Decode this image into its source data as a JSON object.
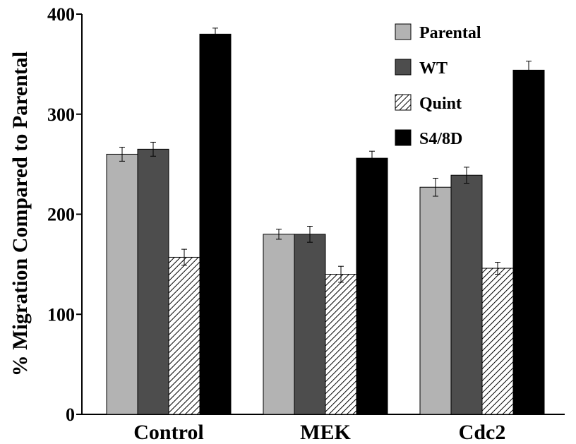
{
  "chart_data": {
    "type": "bar",
    "title": "",
    "xlabel": "",
    "ylabel": "% Migration Compared to Parental",
    "ylim": [
      0,
      400
    ],
    "yticks": [
      0,
      100,
      200,
      300,
      400
    ],
    "grid": false,
    "legend_position": "top-right",
    "categories": [
      "Control",
      "MEK",
      "Cdc2"
    ],
    "series": [
      {
        "name": "Parental",
        "color": "#b3b3b3",
        "pattern": "solid",
        "values": [
          260,
          180,
          227
        ],
        "errors": [
          7,
          5,
          9
        ]
      },
      {
        "name": "WT",
        "color": "#4d4d4d",
        "pattern": "solid",
        "values": [
          265,
          180,
          239
        ],
        "errors": [
          7,
          8,
          8
        ]
      },
      {
        "name": "Quint",
        "color": "#ffffff",
        "pattern": "hatch",
        "values": [
          157,
          140,
          146
        ],
        "errors": [
          8,
          8,
          6
        ]
      },
      {
        "name": "S4/8D",
        "color": "#000000",
        "pattern": "solid",
        "values": [
          380,
          256,
          344
        ],
        "errors": [
          6,
          7,
          9
        ]
      }
    ]
  }
}
